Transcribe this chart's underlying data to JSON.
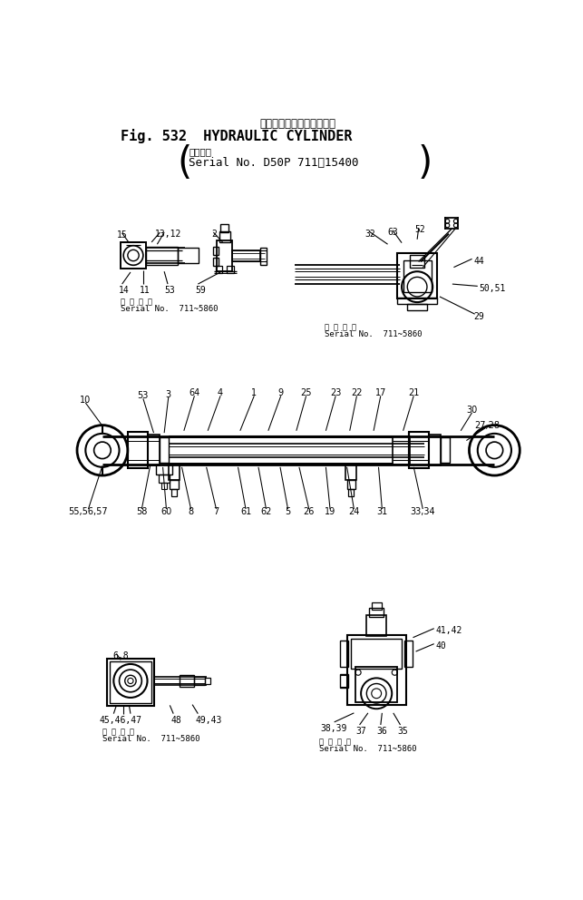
{
  "title_jp": "ハイドロリック　シリンダ",
  "title_en": "Fig. 532  HYDRAULIC CYLINDER",
  "serial_header_jp": "適用号機",
  "serial_header_en": "Serial No. D50P 711~15400",
  "bg_color": "#ffffff",
  "ink_color": "#000000",
  "fig_width": 6.43,
  "fig_height": 9.92,
  "sn_label_jp": "適 用 号 機",
  "sn_label_en": "Serial No.  711~5860"
}
